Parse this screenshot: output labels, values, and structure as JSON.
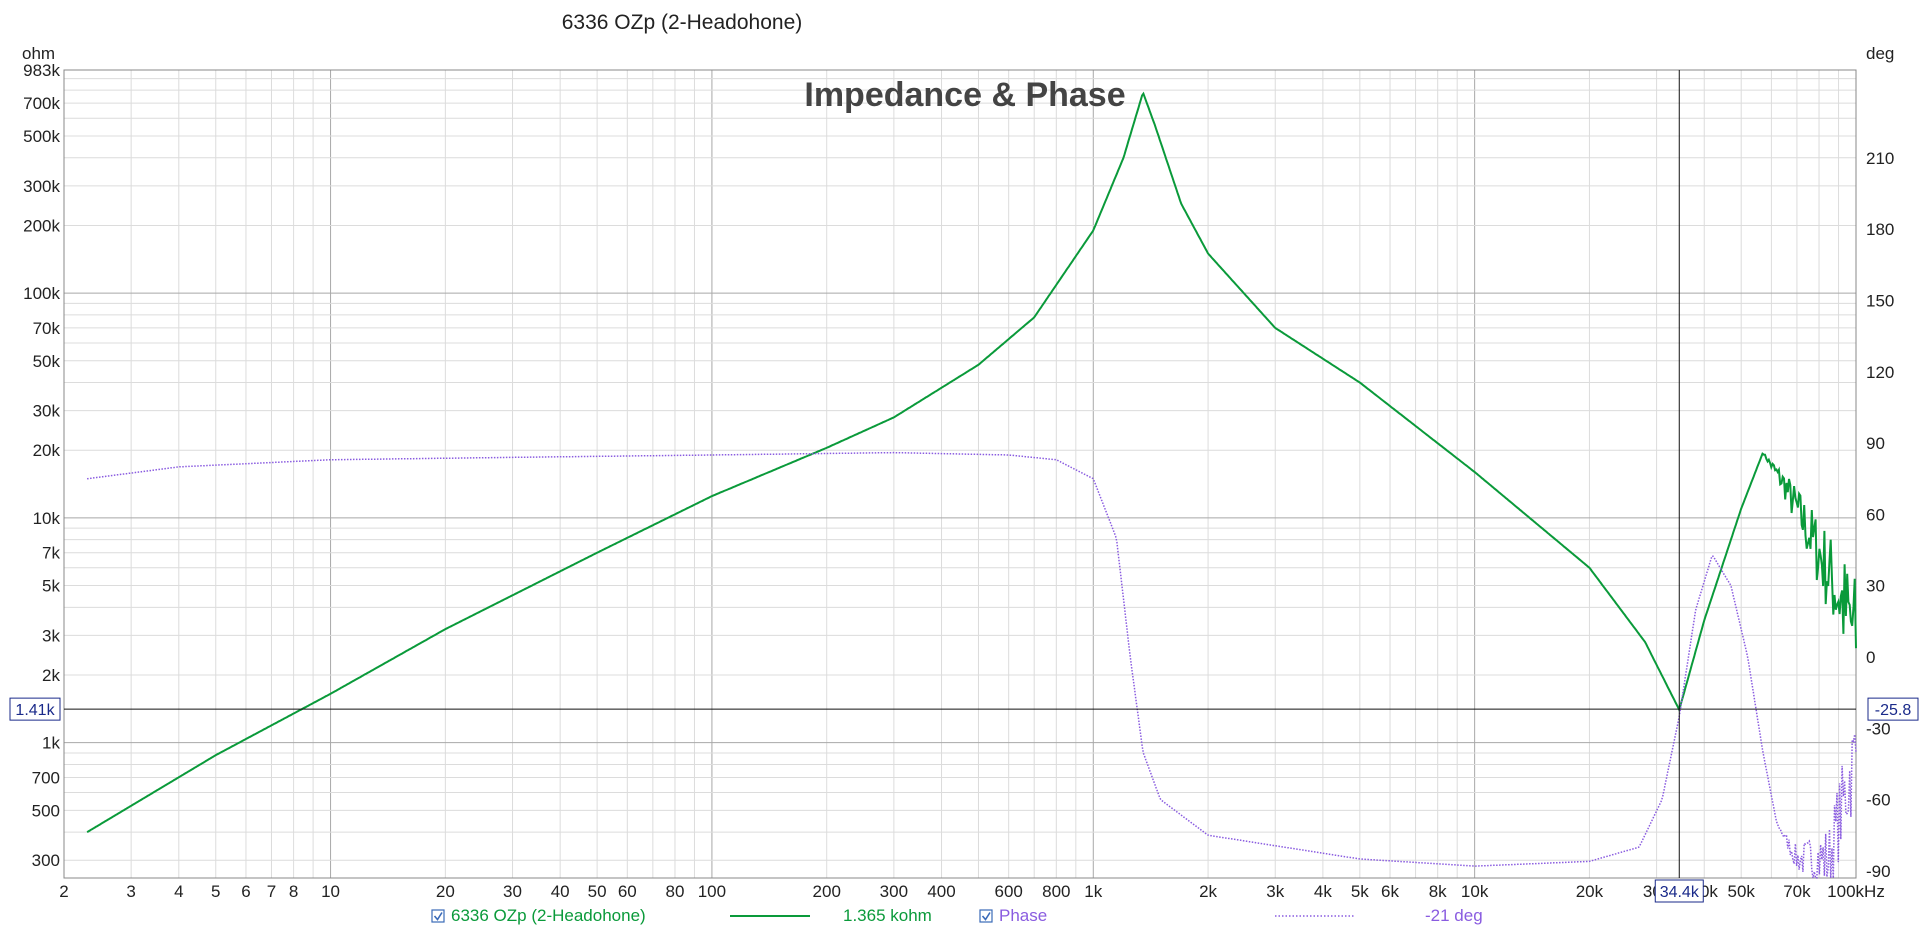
{
  "window_title": "6336 OZp (2-Headohone)",
  "chart_data": {
    "type": "line",
    "title": "Impedance & Phase",
    "xlabel": "Hz",
    "x_scale": "log",
    "xlim": [
      2,
      100000
    ],
    "x_ticks": [
      {
        "v": 2,
        "label": "2"
      },
      {
        "v": 3,
        "label": "3"
      },
      {
        "v": 4,
        "label": "4"
      },
      {
        "v": 5,
        "label": "5"
      },
      {
        "v": 6,
        "label": "6"
      },
      {
        "v": 7,
        "label": "7"
      },
      {
        "v": 8,
        "label": "8"
      },
      {
        "v": 10,
        "label": "10"
      },
      {
        "v": 20,
        "label": "20"
      },
      {
        "v": 30,
        "label": "30"
      },
      {
        "v": 40,
        "label": "40"
      },
      {
        "v": 50,
        "label": "50"
      },
      {
        "v": 60,
        "label": "60"
      },
      {
        "v": 80,
        "label": "80"
      },
      {
        "v": 100,
        "label": "100"
      },
      {
        "v": 200,
        "label": "200"
      },
      {
        "v": 300,
        "label": "300"
      },
      {
        "v": 400,
        "label": "400"
      },
      {
        "v": 600,
        "label": "600"
      },
      {
        "v": 800,
        "label": "800"
      },
      {
        "v": 1000,
        "label": "1k"
      },
      {
        "v": 2000,
        "label": "2k"
      },
      {
        "v": 3000,
        "label": "3k"
      },
      {
        "v": 4000,
        "label": "4k"
      },
      {
        "v": 5000,
        "label": "5k"
      },
      {
        "v": 6000,
        "label": "6k"
      },
      {
        "v": 8000,
        "label": "8k"
      },
      {
        "v": 10000,
        "label": "10k"
      },
      {
        "v": 20000,
        "label": "20k"
      },
      {
        "v": 30000,
        "label": "30k"
      },
      {
        "v": 40000,
        "label": "40k"
      },
      {
        "v": 50000,
        "label": "50k"
      },
      {
        "v": 70000,
        "label": "70k"
      },
      {
        "v": 100000,
        "label": "100kHz"
      }
    ],
    "y_left": {
      "unit": "ohm",
      "scale": "log",
      "lim": [
        250,
        983000
      ],
      "ticks": [
        {
          "v": 300,
          "label": "300"
        },
        {
          "v": 500,
          "label": "500"
        },
        {
          "v": 700,
          "label": "700"
        },
        {
          "v": 1000,
          "label": "1k"
        },
        {
          "v": 2000,
          "label": "2k"
        },
        {
          "v": 3000,
          "label": "3k"
        },
        {
          "v": 5000,
          "label": "5k"
        },
        {
          "v": 7000,
          "label": "7k"
        },
        {
          "v": 10000,
          "label": "10k"
        },
        {
          "v": 20000,
          "label": "20k"
        },
        {
          "v": 30000,
          "label": "30k"
        },
        {
          "v": 50000,
          "label": "50k"
        },
        {
          "v": 70000,
          "label": "70k"
        },
        {
          "v": 100000,
          "label": "100k"
        },
        {
          "v": 200000,
          "label": "200k"
        },
        {
          "v": 300000,
          "label": "300k"
        },
        {
          "v": 500000,
          "label": "500k"
        },
        {
          "v": 700000,
          "label": "700k"
        },
        {
          "v": 983000,
          "label": "983k"
        }
      ]
    },
    "y_right": {
      "unit": "deg",
      "scale": "linear",
      "lim": [
        -93,
        247
      ],
      "ticks": [
        {
          "v": -90,
          "label": "-90"
        },
        {
          "v": -60,
          "label": "-60"
        },
        {
          "v": -30,
          "label": "-30"
        },
        {
          "v": 0,
          "label": "0"
        },
        {
          "v": 30,
          "label": "30"
        },
        {
          "v": 60,
          "label": "60"
        },
        {
          "v": 90,
          "label": "90"
        },
        {
          "v": 120,
          "label": "120"
        },
        {
          "v": 150,
          "label": "150"
        },
        {
          "v": 180,
          "label": "180"
        },
        {
          "v": 210,
          "label": "210"
        }
      ]
    },
    "grid": true,
    "series": [
      {
        "name": "6336 OZp (2-Headohone)",
        "axis": "left",
        "color": "#0a9a3a",
        "cursor_value": "1.365 kohm",
        "points": [
          [
            2.3,
            400
          ],
          [
            5,
            880
          ],
          [
            10,
            1650
          ],
          [
            20,
            3200
          ],
          [
            50,
            7000
          ],
          [
            100,
            12500
          ],
          [
            200,
            20500
          ],
          [
            300,
            28000
          ],
          [
            500,
            48000
          ],
          [
            700,
            78000
          ],
          [
            1000,
            190000
          ],
          [
            1200,
            400000
          ],
          [
            1350,
            780000
          ],
          [
            1450,
            560000
          ],
          [
            1700,
            250000
          ],
          [
            2000,
            150000
          ],
          [
            3000,
            70000
          ],
          [
            5000,
            40000
          ],
          [
            10000,
            16000
          ],
          [
            20000,
            6000
          ],
          [
            28000,
            2800
          ],
          [
            34400,
            1400
          ],
          [
            40000,
            3500
          ],
          [
            50000,
            11000
          ],
          [
            57000,
            19500
          ],
          [
            65000,
            14000
          ],
          [
            80000,
            7000
          ],
          [
            92000,
            4200
          ],
          [
            100000,
            3000
          ]
        ],
        "noisy_segment": [
          57000,
          100000
        ]
      },
      {
        "name": "Phase",
        "axis": "right",
        "color": "#8a5ce0",
        "cursor_value": "-21 deg",
        "points": [
          [
            2.3,
            75
          ],
          [
            4,
            80
          ],
          [
            10,
            83
          ],
          [
            30,
            84
          ],
          [
            100,
            85
          ],
          [
            300,
            86
          ],
          [
            600,
            85
          ],
          [
            800,
            83
          ],
          [
            1000,
            75
          ],
          [
            1150,
            50
          ],
          [
            1250,
            0
          ],
          [
            1350,
            -40
          ],
          [
            1500,
            -60
          ],
          [
            2000,
            -75
          ],
          [
            5000,
            -85
          ],
          [
            10000,
            -88
          ],
          [
            20000,
            -86
          ],
          [
            27000,
            -80
          ],
          [
            31000,
            -60
          ],
          [
            34400,
            -25
          ],
          [
            38000,
            20
          ],
          [
            42000,
            43
          ],
          [
            47000,
            30
          ],
          [
            52000,
            0
          ],
          [
            57000,
            -40
          ],
          [
            62000,
            -70
          ],
          [
            70000,
            -85
          ],
          [
            85000,
            -85
          ],
          [
            100000,
            -40
          ]
        ],
        "noisy_segment": [
          62000,
          100000
        ]
      }
    ],
    "cursor": {
      "x": 34400,
      "x_label": "34.4k",
      "y_left_label": "1.41k",
      "y_right_label": "-25.8"
    },
    "legend": {
      "placement": "bottom"
    }
  }
}
